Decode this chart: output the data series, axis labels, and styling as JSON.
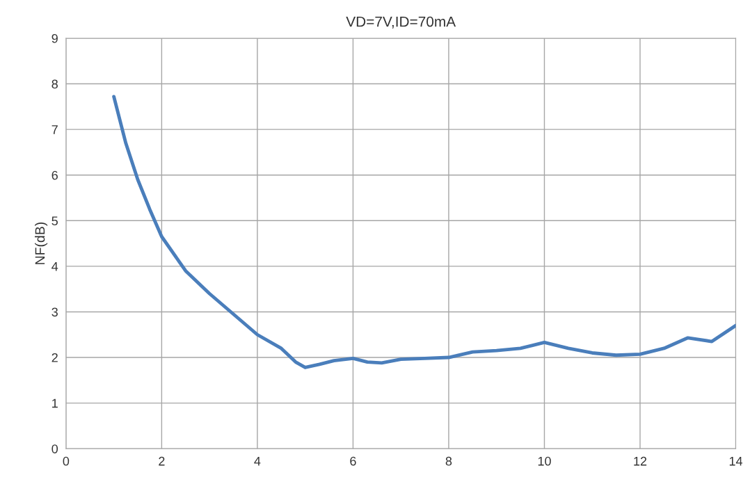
{
  "chart_data": {
    "type": "line",
    "title": "VD=7V,ID=70mA",
    "ylabel": "NF(dB)",
    "xlim": [
      0,
      14
    ],
    "xticks": [
      0,
      2,
      4,
      6,
      8,
      10,
      12,
      14
    ],
    "ylim": [
      0,
      9
    ],
    "yticks": [
      0,
      1,
      2,
      3,
      4,
      5,
      6,
      7,
      8,
      9
    ],
    "grid": true,
    "line_style": "solid",
    "marker": "none",
    "series": [
      {
        "color": "#4a7ebb",
        "x": [
          1.0,
          1.25,
          1.5,
          1.75,
          2.0,
          2.5,
          3.0,
          3.5,
          4.0,
          4.5,
          4.8,
          5.0,
          5.3,
          5.6,
          6.0,
          6.3,
          6.6,
          7.0,
          7.5,
          8.0,
          8.5,
          9.0,
          9.5,
          10.0,
          10.5,
          11.0,
          11.5,
          12.0,
          12.5,
          13.0,
          13.5,
          14.0
        ],
        "values": [
          7.72,
          6.7,
          5.9,
          5.25,
          4.65,
          3.9,
          3.4,
          2.95,
          2.5,
          2.2,
          1.9,
          1.78,
          1.85,
          1.93,
          1.98,
          1.9,
          1.88,
          1.96,
          1.98,
          2.0,
          2.12,
          2.15,
          2.2,
          2.33,
          2.2,
          2.1,
          2.05,
          2.07,
          2.2,
          2.43,
          2.35,
          2.7
        ]
      }
    ]
  }
}
